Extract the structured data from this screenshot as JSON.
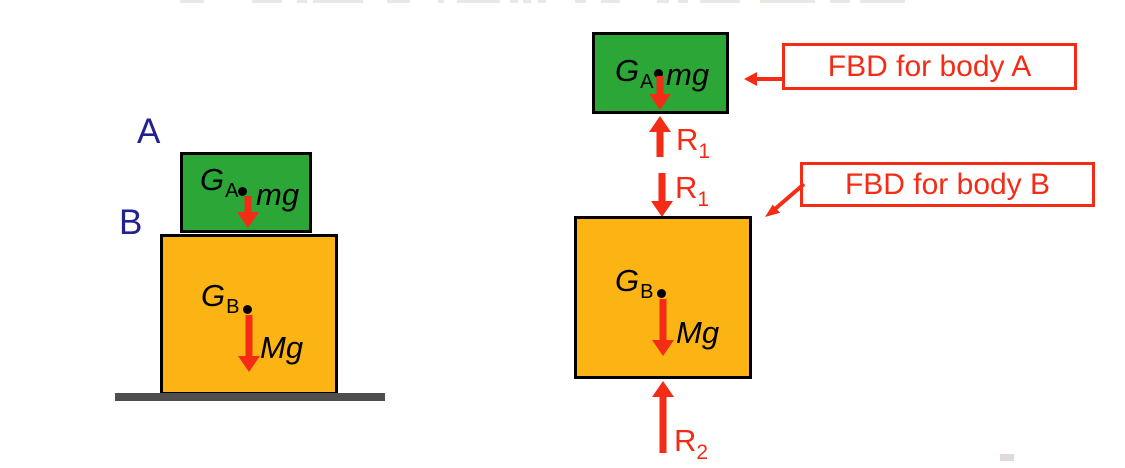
{
  "colors": {
    "green": "#2ba637",
    "orange": "#fcb414",
    "red": "#f42b15",
    "navy": "#21218f",
    "ground": "#4e4e4e"
  },
  "labels": {
    "body_a": "A",
    "body_b": "B"
  },
  "stack_diagram": {
    "block_a": {
      "center_symbol": "G",
      "center_sub": "A",
      "force": "mg"
    },
    "block_b": {
      "center_symbol": "G",
      "center_sub": "B",
      "force": "Mg"
    }
  },
  "fbd_a": {
    "callout": "FBD for body A",
    "center_symbol": "G",
    "center_sub": "A",
    "force": "mg",
    "reaction": "R",
    "reaction_sub": "1"
  },
  "fbd_b": {
    "callout": "FBD for body B",
    "incoming_reaction": "R",
    "incoming_reaction_sub": "1",
    "center_symbol": "G",
    "center_sub": "B",
    "force": "Mg",
    "support_reaction": "R",
    "support_reaction_sub": "2"
  }
}
